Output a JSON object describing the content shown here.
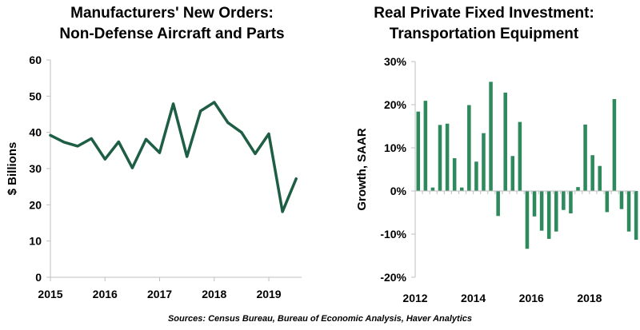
{
  "colors": {
    "series": "#1e5e45",
    "bar": "#2e8a5c",
    "axis": "#bfbfbf"
  },
  "source": "Sources: Census Bureau, Bureau of Economic Analysis, Haver Analytics",
  "chart_data": [
    {
      "type": "line",
      "title_line1": "Manufacturers' New Orders:",
      "title_line2": "Non-Defense Aircraft and Parts",
      "ylabel": "$ Billions",
      "xlabel": "",
      "ylim": [
        0,
        60
      ],
      "xlim": [
        2015,
        2019.6
      ],
      "yticks": [
        "0",
        "10",
        "20",
        "30",
        "40",
        "50",
        "60"
      ],
      "xticks": [
        "2015",
        "2016",
        "2017",
        "2018",
        "2019"
      ],
      "grid": false,
      "x": [
        2015.0,
        2015.25,
        2015.5,
        2015.75,
        2016.0,
        2016.25,
        2016.5,
        2016.75,
        2017.0,
        2017.25,
        2017.5,
        2017.75,
        2018.0,
        2018.25,
        2018.5,
        2018.75,
        2019.0,
        2019.25,
        2019.5
      ],
      "values": [
        39.2,
        37.3,
        36.2,
        38.3,
        32.6,
        37.4,
        30.2,
        38.1,
        34.4,
        47.9,
        33.3,
        45.9,
        48.3,
        42.7,
        40.0,
        34.1,
        39.6,
        18.1,
        27.2
      ]
    },
    {
      "type": "bar",
      "title_line1": "Real Private Fixed Investment:",
      "title_line2": "Transportation Equipment",
      "ylabel": "Growth, SAAR",
      "xlabel": "",
      "ylim": [
        -20,
        30
      ],
      "xlim": [
        2012,
        2019.6
      ],
      "yticks": [
        "-20%",
        "-10%",
        "0%",
        "10%",
        "20%",
        "30%"
      ],
      "xticks": [
        "2012",
        "2014",
        "2016",
        "2018"
      ],
      "grid": false,
      "x": [
        2012.0,
        2012.25,
        2012.5,
        2012.75,
        2013.0,
        2013.25,
        2013.5,
        2013.75,
        2014.0,
        2014.25,
        2014.5,
        2014.75,
        2015.0,
        2015.25,
        2015.5,
        2015.75,
        2016.0,
        2016.25,
        2016.5,
        2016.75,
        2017.0,
        2017.25,
        2017.5,
        2017.75,
        2018.0,
        2018.25,
        2018.5,
        2018.75,
        2019.0,
        2019.25,
        2019.5
      ],
      "values": [
        18.4,
        20.9,
        0.8,
        15.3,
        15.6,
        7.6,
        0.8,
        19.9,
        6.8,
        13.4,
        25.3,
        -5.8,
        22.8,
        8.1,
        16.0,
        -13.4,
        -5.9,
        -9.2,
        -11.1,
        -9.4,
        -4.4,
        -5.2,
        0.9,
        15.4,
        8.3,
        5.8,
        -4.9,
        21.3,
        -4.2,
        -9.4,
        -11.3
      ]
    }
  ]
}
